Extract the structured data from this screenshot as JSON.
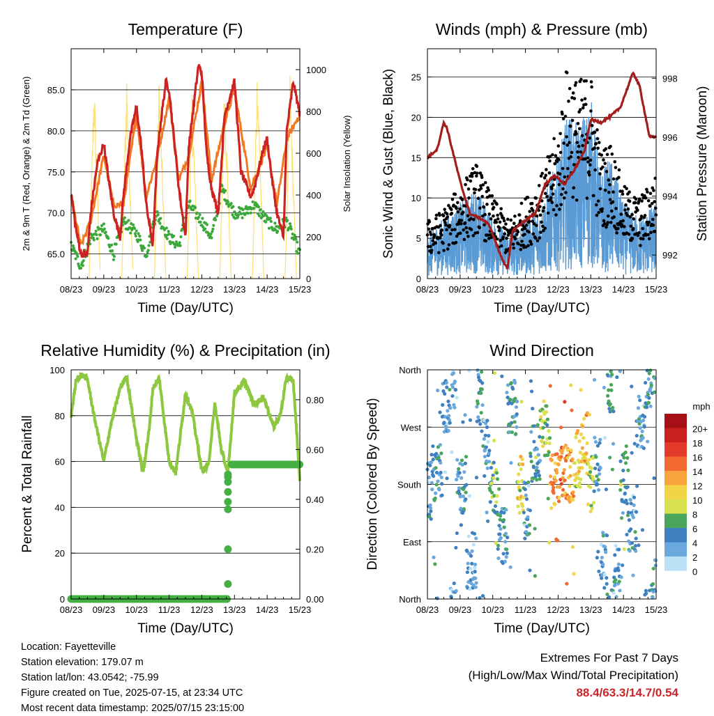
{
  "colors": {
    "temp": "#cc2222",
    "temp9": "#f07820",
    "dew": "#3aa83a",
    "solar": "#fde17a",
    "wind": "#5b9bd5",
    "gust": "#000000",
    "pressure": "#a31d1d",
    "rh": "#8dc63f",
    "rain": "#44b044"
  },
  "time_ticks": [
    "08/23",
    "09/23",
    "10/23",
    "11/23",
    "12/23",
    "13/23",
    "14/23",
    "15/23"
  ],
  "panels": {
    "temperature": {
      "title": "Temperature (F)",
      "xlabel": "Time (Day/UTC)",
      "ylabel": "2m & 9m T (Red, Orange) & 2m Td (Green)",
      "y2label": "Solar Insolation (Yellow)",
      "yticks": [
        "65.0",
        "70.0",
        "75.0",
        "80.0",
        "85.0"
      ],
      "y2ticks": [
        "0",
        "200",
        "400",
        "600",
        "800",
        "1000"
      ]
    },
    "winds": {
      "title": "Winds (mph) & Pressure (mb)",
      "xlabel": "Time (Day/UTC)",
      "ylabel": "Sonic Wind & Gust (Blue, Black)",
      "y2label": "Station Pressure (Maroon)",
      "yticks": [
        "0",
        "5",
        "10",
        "15",
        "20",
        "25"
      ],
      "y2ticks": [
        "992",
        "994",
        "996",
        "998"
      ]
    },
    "humidity": {
      "title": "Relative Humidity (%) & Precipitation (in)",
      "xlabel": "Time (Day/UTC)",
      "ylabel": "Percent & Total Rainfall",
      "yticks": [
        "0",
        "20",
        "40",
        "60",
        "80",
        "100"
      ],
      "y2ticks": [
        "0.00",
        "0.20",
        "0.40",
        "0.60",
        "0.80"
      ]
    },
    "direction": {
      "title": "Wind Direction",
      "xlabel": "Time (Day/UTC)",
      "ylabel": "Direction (Colored By Speed)",
      "yticks": [
        "North",
        "East",
        "South",
        "West",
        "North"
      ],
      "colorbar_title": "mph",
      "colorbar_labels": [
        "20+",
        "18",
        "16",
        "14",
        "12",
        "10",
        "8",
        "6",
        "4",
        "2",
        "0"
      ],
      "colorbar_colors": [
        "#a50f15",
        "#c9201e",
        "#e2392b",
        "#f2692f",
        "#f9a33c",
        "#f1d546",
        "#d7e24e",
        "#4aa65a",
        "#3f80c0",
        "#6aa8dd",
        "#b9e2f7"
      ]
    }
  },
  "chart_data": [
    {
      "type": "line",
      "title": "Temperature (F)",
      "xlabel": "Time (Day/UTC)",
      "ylabel": "2m & 9m T (Red, Orange) & 2m Td (Green)",
      "y2label": "Solar Insolation (Yellow)",
      "x_unit": "days since 08/23",
      "ylim": [
        62,
        90
      ],
      "y2lim": [
        0,
        1100
      ],
      "series": [
        {
          "name": "2m T",
          "axis": "left",
          "x": [
            0,
            0.15,
            0.3,
            0.5,
            0.6,
            0.8,
            1.0,
            1.15,
            1.3,
            1.5,
            1.6,
            1.8,
            2.0,
            2.15,
            2.3,
            2.5,
            2.65,
            2.9,
            3.0,
            3.15,
            3.3,
            3.5,
            3.6,
            3.9,
            4.0,
            4.15,
            4.3,
            4.5,
            4.7,
            5.0,
            5.2,
            5.5,
            5.6,
            5.9,
            6.0,
            6.15,
            6.3,
            6.5,
            6.6,
            6.8,
            7.0
          ],
          "values": [
            72.5,
            68,
            65,
            65,
            70,
            76,
            78.5,
            74,
            70,
            67,
            72,
            79,
            83,
            78,
            71,
            66,
            78,
            86,
            85,
            79,
            73,
            67,
            78,
            88,
            87,
            77,
            73,
            70,
            82,
            86,
            75,
            72,
            73,
            78,
            79,
            74,
            70,
            67,
            80,
            86,
            82
          ]
        },
        {
          "name": "9m T",
          "axis": "left",
          "x": [
            0,
            0.3,
            0.6,
            1.0,
            1.3,
            1.6,
            2.0,
            2.3,
            2.65,
            3.0,
            3.3,
            3.6,
            4.0,
            4.3,
            4.7,
            5.0,
            5.5,
            5.9,
            6.0,
            6.3,
            6.6,
            7.0
          ],
          "values": [
            72,
            66,
            69,
            77,
            71,
            71,
            82,
            72,
            77,
            84,
            74,
            77,
            86,
            74,
            81,
            85,
            73,
            77,
            78,
            71,
            79,
            82
          ]
        },
        {
          "name": "2m Td",
          "axis": "left",
          "x": [
            0,
            0.3,
            0.6,
            1.0,
            1.3,
            1.6,
            2.0,
            2.3,
            2.6,
            3.0,
            3.3,
            3.6,
            4.0,
            4.3,
            4.6,
            5.0,
            5.3,
            5.6,
            6.0,
            6.3,
            6.6,
            7.0
          ],
          "values": [
            66,
            63.5,
            67,
            68,
            65,
            69,
            67.5,
            65,
            70,
            67,
            66,
            71,
            69,
            67,
            73,
            70,
            70,
            71,
            69,
            68,
            69,
            65
          ]
        },
        {
          "name": "Solar",
          "axis": "right",
          "x": [
            0.55,
            0.7,
            0.9,
            1.55,
            1.7,
            1.9,
            2.55,
            2.7,
            2.9,
            3.55,
            3.7,
            3.9,
            4.55,
            4.7,
            4.9,
            5.55,
            5.7,
            5.9,
            6.55,
            6.7,
            6.9
          ],
          "values": [
            0,
            1000,
            0,
            0,
            1030,
            0,
            0,
            1020,
            0,
            0,
            920,
            0,
            0,
            1000,
            0,
            0,
            1080,
            0,
            0,
            1000,
            0
          ]
        }
      ]
    },
    {
      "type": "line",
      "title": "Winds (mph) & Pressure (mb)",
      "xlabel": "Time (Day/UTC)",
      "ylabel": "Sonic Wind & Gust (Blue, Black)",
      "y2label": "Station Pressure (Maroon)",
      "x_unit": "days since 08/23",
      "ylim": [
        0,
        28.5
      ],
      "y2lim": [
        991.2,
        999.0
      ],
      "series": [
        {
          "name": "Sonic Wind",
          "axis": "left",
          "x": [
            0,
            0.5,
            1,
            1.5,
            2,
            2.5,
            3,
            3.5,
            4,
            4.3,
            4.6,
            5,
            5.3,
            5.6,
            6,
            6.5,
            7
          ],
          "values": [
            3,
            4,
            5,
            6,
            4,
            3,
            4,
            5,
            8,
            11,
            10,
            12,
            7,
            8,
            5,
            4,
            5
          ]
        },
        {
          "name": "Gust",
          "axis": "left",
          "x": [
            0,
            0.5,
            1,
            1.5,
            2,
            2.5,
            3,
            3.5,
            4,
            4.3,
            4.6,
            5,
            5.3,
            5.6,
            6,
            6.5,
            7
          ],
          "values": [
            5,
            6,
            8,
            10,
            7,
            5,
            7,
            9,
            13,
            19,
            17,
            18,
            11,
            12,
            8,
            7,
            9
          ]
        },
        {
          "name": "Pressure",
          "axis": "right",
          "x": [
            0,
            0.3,
            0.5,
            0.6,
            1.0,
            1.3,
            1.7,
            1.9,
            2.2,
            2.45,
            2.6,
            2.9,
            3.3,
            3.6,
            3.9,
            4.2,
            4.5,
            4.8,
            5.0,
            5.3,
            5.6,
            5.9,
            6.3,
            6.5,
            6.8,
            7.0
          ],
          "values": [
            995.3,
            995.6,
            996.5,
            996.3,
            994.5,
            993.4,
            993.2,
            993.0,
            992.1,
            991.5,
            992.8,
            993.1,
            993.4,
            994.4,
            994.7,
            994.4,
            994.9,
            995.5,
            996.6,
            996.5,
            996.7,
            997.0,
            998.2,
            997.7,
            996.0,
            996.0
          ]
        }
      ]
    },
    {
      "type": "line",
      "title": "Relative Humidity (%) & Precipitation (in)",
      "xlabel": "Time (Day/UTC)",
      "ylabel": "Percent & Total Rainfall",
      "x_unit": "days since 08/23",
      "ylim": [
        0,
        100
      ],
      "y2lim": [
        0,
        0.92
      ],
      "series": [
        {
          "name": "RH",
          "axis": "left",
          "x": [
            0,
            0.15,
            0.3,
            0.5,
            0.7,
            1.0,
            1.2,
            1.5,
            1.7,
            2.0,
            2.2,
            2.4,
            2.5,
            2.7,
            3.0,
            3.2,
            3.4,
            3.5,
            3.7,
            4.0,
            4.2,
            4.4,
            4.6,
            4.8,
            5.0,
            5.3,
            5.6,
            5.9,
            6.2,
            6.4,
            6.6,
            6.8,
            7.0
          ],
          "values": [
            80,
            95,
            98,
            96,
            80,
            60,
            75,
            92,
            97,
            70,
            55,
            75,
            92,
            96,
            60,
            55,
            78,
            90,
            82,
            56,
            58,
            85,
            65,
            55,
            90,
            95,
            85,
            88,
            75,
            80,
            97,
            95,
            52
          ]
        },
        {
          "name": "Total Rainfall",
          "axis": "right",
          "x": [
            0,
            2,
            4,
            4.78,
            4.8,
            4.82,
            4.84,
            4.86,
            4.88,
            5.0,
            6.0,
            7.0
          ],
          "values": [
            0,
            0,
            0,
            0,
            0.06,
            0.2,
            0.36,
            0.39,
            0.5,
            0.54,
            0.54,
            0.54
          ]
        }
      ]
    },
    {
      "type": "scatter",
      "title": "Wind Direction",
      "xlabel": "Time (Day/UTC)",
      "ylabel": "Direction (Colored By Speed)",
      "x_unit": "days since 08/23",
      "y_unit": "degrees (North at 0 and 360)",
      "ylim": [
        0,
        360
      ],
      "points": [
        {
          "x": 0.0,
          "y": 170,
          "mph": 3
        },
        {
          "x": 0.3,
          "y": 200,
          "mph": 4
        },
        {
          "x": 0.6,
          "y": 300,
          "mph": 3
        },
        {
          "x": 0.8,
          "y": 340,
          "mph": 2
        },
        {
          "x": 1.0,
          "y": 180,
          "mph": 4
        },
        {
          "x": 1.4,
          "y": 60,
          "mph": 2
        },
        {
          "x": 1.6,
          "y": 320,
          "mph": 4
        },
        {
          "x": 1.8,
          "y": 250,
          "mph": 3
        },
        {
          "x": 2.0,
          "y": 180,
          "mph": 6
        },
        {
          "x": 2.3,
          "y": 100,
          "mph": 4
        },
        {
          "x": 2.6,
          "y": 300,
          "mph": 4
        },
        {
          "x": 2.9,
          "y": 180,
          "mph": 9
        },
        {
          "x": 3.0,
          "y": 140,
          "mph": 3
        },
        {
          "x": 3.3,
          "y": 230,
          "mph": 5
        },
        {
          "x": 3.6,
          "y": 270,
          "mph": 7
        },
        {
          "x": 3.9,
          "y": 185,
          "mph": 12
        },
        {
          "x": 4.2,
          "y": 200,
          "mph": 13
        },
        {
          "x": 4.4,
          "y": 195,
          "mph": 12
        },
        {
          "x": 4.6,
          "y": 220,
          "mph": 9
        },
        {
          "x": 4.8,
          "y": 250,
          "mph": 11
        },
        {
          "x": 5.0,
          "y": 180,
          "mph": 8
        },
        {
          "x": 5.2,
          "y": 210,
          "mph": 4
        },
        {
          "x": 5.4,
          "y": 60,
          "mph": 3
        },
        {
          "x": 5.6,
          "y": 330,
          "mph": 5
        },
        {
          "x": 5.8,
          "y": 40,
          "mph": 3
        },
        {
          "x": 6.0,
          "y": 190,
          "mph": 5
        },
        {
          "x": 6.3,
          "y": 120,
          "mph": 3
        },
        {
          "x": 6.5,
          "y": 280,
          "mph": 3
        },
        {
          "x": 6.8,
          "y": 340,
          "mph": 4
        },
        {
          "x": 7.0,
          "y": 20,
          "mph": 4
        }
      ]
    }
  ],
  "footer": {
    "location": "Location: Fayetteville",
    "elevation": "Station elevation: 179.07 m",
    "latlon": "Station lat/lon: 43.0542; -75.99",
    "created": "Figure created on Tue, 2025-07-15, at 23:34 UTC",
    "recent": "Most recent data timestamp: 2025/07/15 23:15:00"
  },
  "extremes": {
    "title": "Extremes For Past 7 Days",
    "subtitle": "(High/Low/Max Wind/Total Precipitation)",
    "values": "88.4/63.3/14.7/0.54"
  }
}
